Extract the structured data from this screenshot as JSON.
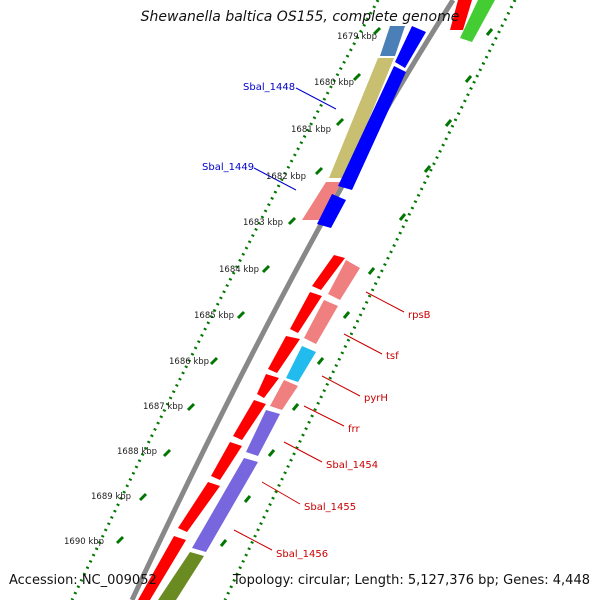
{
  "map": {
    "title": "Shewanella baltica OS155, complete genome",
    "accession": "Accession: NC_009052",
    "topology": "Topology: circular; Length: 5,127,376 bp; Genes: 4,448"
  },
  "kbp_ticks": [
    "1679 kbp",
    "1680 kbp",
    "1681 kbp",
    "1682 kbp",
    "1683 kbp",
    "1684 kbp",
    "1685 kbp",
    "1686 kbp",
    "1687 kbp",
    "1688 kbp",
    "1689 kbp",
    "1690 kbp"
  ],
  "gene_labels": [
    {
      "text": "Sbal_1448",
      "color": "#0000cc"
    },
    {
      "text": "Sbal_1449",
      "color": "#0000cc"
    },
    {
      "text": "rpsB",
      "color": "#cc0000"
    },
    {
      "text": "tsf",
      "color": "#cc0000"
    },
    {
      "text": "pyrH",
      "color": "#cc0000"
    },
    {
      "text": "frr",
      "color": "#cc0000"
    },
    {
      "text": "Sbal_1454",
      "color": "#cc0000"
    },
    {
      "text": "Sbal_1455",
      "color": "#cc0000"
    },
    {
      "text": "Sbal_1456",
      "color": "#cc0000"
    }
  ],
  "colors": {
    "forward_strand": "#ff0000",
    "reverse_strand": "#0000ff",
    "light_red": "#f08080",
    "khaki": "#c8c070",
    "cyan": "#22bbee",
    "purple": "#7766dd",
    "steel_blue": "#4a7fb8",
    "green": "#44cc33",
    "olive": "#6a8a22",
    "dotted_axis": "#007700"
  }
}
